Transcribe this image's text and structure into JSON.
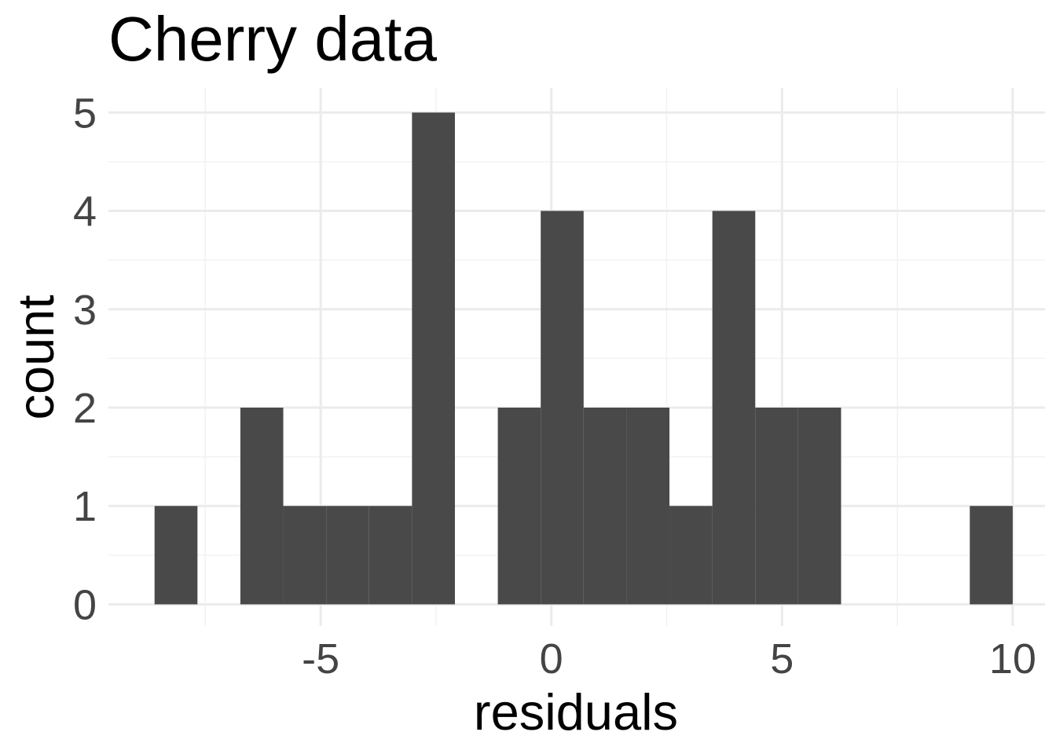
{
  "chart_data": {
    "type": "bar",
    "title": "Cherry data",
    "xlabel": "residuals",
    "ylabel": "count",
    "bars": [
      {
        "x_start": -8.6,
        "x_end": -7.67,
        "count": 1
      },
      {
        "x_start": -7.67,
        "x_end": -6.74,
        "count": 0
      },
      {
        "x_start": -6.74,
        "x_end": -5.81,
        "count": 2
      },
      {
        "x_start": -5.81,
        "x_end": -4.88,
        "count": 1
      },
      {
        "x_start": -4.88,
        "x_end": -3.95,
        "count": 1
      },
      {
        "x_start": -3.95,
        "x_end": -3.02,
        "count": 1
      },
      {
        "x_start": -3.02,
        "x_end": -2.09,
        "count": 5
      },
      {
        "x_start": -2.09,
        "x_end": -1.16,
        "count": 0
      },
      {
        "x_start": -1.16,
        "x_end": -0.23,
        "count": 2
      },
      {
        "x_start": -0.23,
        "x_end": 0.7,
        "count": 4
      },
      {
        "x_start": 0.7,
        "x_end": 1.63,
        "count": 2
      },
      {
        "x_start": 1.63,
        "x_end": 2.56,
        "count": 2
      },
      {
        "x_start": 2.56,
        "x_end": 3.49,
        "count": 1
      },
      {
        "x_start": 3.49,
        "x_end": 4.42,
        "count": 4
      },
      {
        "x_start": 4.42,
        "x_end": 5.35,
        "count": 2
      },
      {
        "x_start": 5.35,
        "x_end": 6.28,
        "count": 2
      },
      {
        "x_start": 6.28,
        "x_end": 7.21,
        "count": 0
      },
      {
        "x_start": 7.21,
        "x_end": 8.14,
        "count": 0
      },
      {
        "x_start": 8.14,
        "x_end": 9.07,
        "count": 0
      },
      {
        "x_start": 9.07,
        "x_end": 10.0,
        "count": 1
      }
    ],
    "xlim": [
      -9.6,
      10.7
    ],
    "ylim": [
      -0.22,
      5.25
    ],
    "x_ticks": [
      -5,
      0,
      5,
      10
    ],
    "x_tick_labels": [
      "-5",
      "0",
      "5",
      "10"
    ],
    "x_minor_ticks": [
      -7.5,
      -2.5,
      2.5,
      7.5
    ],
    "y_ticks": [
      0,
      1,
      2,
      3,
      4,
      5
    ],
    "y_tick_labels": [
      "0",
      "1",
      "2",
      "3",
      "4",
      "5"
    ],
    "y_minor_ticks": [
      0.5,
      1.5,
      2.5,
      3.5,
      4.5
    ],
    "grid": true,
    "legend": "none",
    "colors": {
      "bar_fill": "#494949",
      "background": "#ffffff",
      "grid": "#ebebeb",
      "tick_text": "#444444"
    }
  }
}
